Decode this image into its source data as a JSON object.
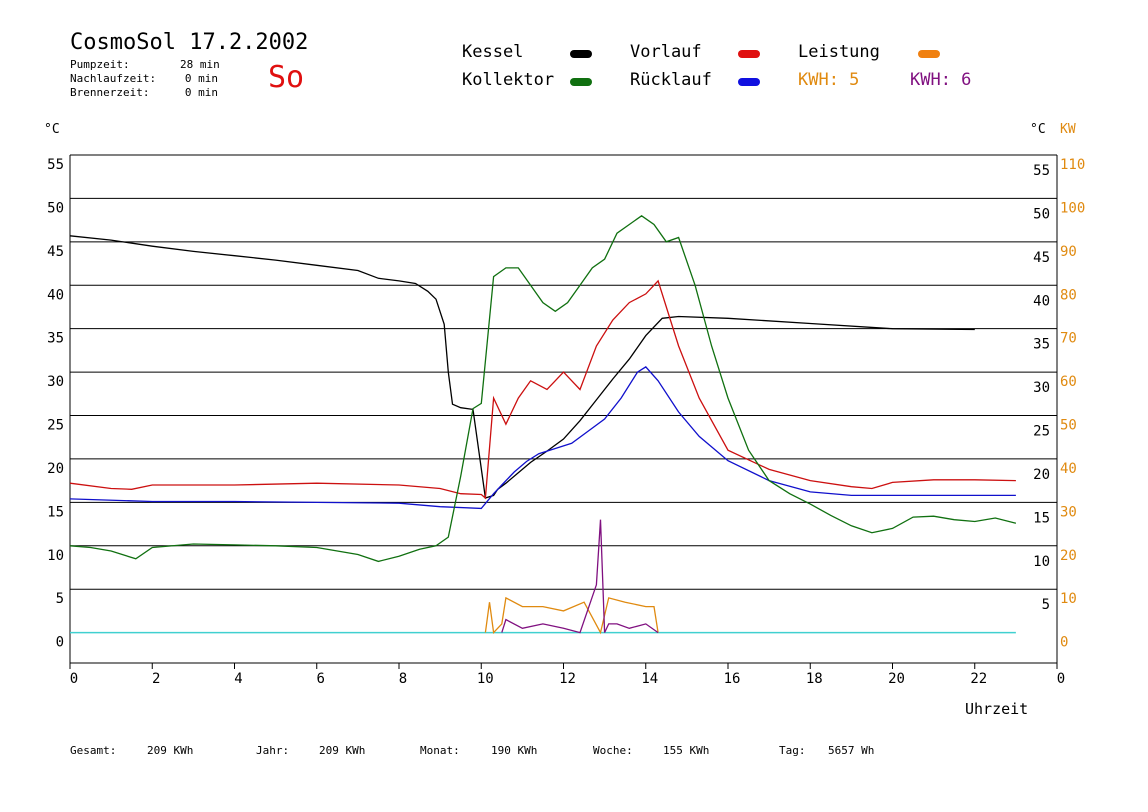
{
  "header": {
    "title": "CosmoSol 17.2.2002",
    "day": "So",
    "info": [
      {
        "label": "Pumpzeit:",
        "value": "28 min"
      },
      {
        "label": "Nachlaufzeit:",
        "value": "0 min"
      },
      {
        "label": "Brennerzeit:",
        "value": "0 min"
      }
    ]
  },
  "legend": {
    "kessel": "Kessel",
    "kollektor": "Kollektor",
    "vorlauf": "Vorlauf",
    "ruecklauf": "Rücklauf",
    "leistung": "Leistung",
    "kwh5": "KWH: 5",
    "kwh6": "KWH: 6"
  },
  "axes": {
    "left_unit": "°C",
    "right_unit": "°C",
    "right_unit2": "KW",
    "xlabel": "Uhrzeit"
  },
  "stats": [
    {
      "label": "Gesamt:",
      "value": "209 KWh"
    },
    {
      "label": "Jahr:",
      "value": "209 KWh"
    },
    {
      "label": "Monat:",
      "value": "190 KWh"
    },
    {
      "label": "Woche:",
      "value": "155 KWh"
    },
    {
      "label": "Tag:",
      "value": "5657 Wh"
    }
  ],
  "chart_data": {
    "type": "line",
    "xlabel": "Uhrzeit",
    "ylabel": "°C",
    "y2label": "KW",
    "xlim": [
      0,
      24
    ],
    "ylim": [
      -3.5,
      55
    ],
    "y2lim": [
      -7,
      110
    ],
    "x_ticks": [
      "0",
      "2",
      "4",
      "6",
      "8",
      "10",
      "12",
      "14",
      "16",
      "18",
      "20",
      "22",
      "0"
    ],
    "y_ticks_left": [
      "0",
      "5",
      "10",
      "15",
      "20",
      "25",
      "30",
      "35",
      "40",
      "45",
      "50",
      "55"
    ],
    "y_ticks_right": [
      "5",
      "10",
      "15",
      "20",
      "25",
      "30",
      "35",
      "40",
      "45",
      "50",
      "55"
    ],
    "y2_ticks": [
      "0",
      "10",
      "20",
      "30",
      "40",
      "50",
      "60",
      "70",
      "80",
      "90",
      "100",
      "110"
    ],
    "grid": true,
    "colors": {
      "kessel": "#000000",
      "vorlauf": "#cc1010",
      "ruecklauf": "#1010cc",
      "kollektor": "#107010",
      "leistung": "#f08010",
      "kwh5": "#e08a10",
      "kwh6": "#801080",
      "baseline": "#40d0d0"
    },
    "series": [
      {
        "name": "Kessel",
        "axis": "left",
        "x": [
          0,
          1,
          2,
          3,
          4,
          5,
          6,
          7,
          7.5,
          8,
          8.4,
          8.7,
          8.9,
          9.1,
          9.2,
          9.3,
          9.5,
          9.8,
          10.1,
          10.3,
          10.4,
          10.6,
          10.9,
          11.2,
          11.6,
          12,
          12.4,
          12.8,
          13.2,
          13.6,
          14,
          14.4,
          14.8,
          16,
          18,
          20,
          22
        ],
        "values": [
          45.7,
          45.2,
          44.5,
          43.9,
          43.4,
          42.9,
          42.3,
          41.7,
          40.8,
          40.5,
          40.2,
          39.3,
          38.4,
          35.5,
          30.0,
          26.3,
          25.9,
          25.7,
          15.5,
          15.8,
          16.5,
          17.2,
          18.4,
          19.6,
          20.9,
          22.3,
          24.4,
          26.8,
          29.2,
          31.5,
          34.2,
          36.2,
          36.4,
          36.2,
          35.6,
          35.0,
          34.9
        ]
      },
      {
        "name": "Vorlauf",
        "axis": "left",
        "x": [
          0,
          1,
          1.5,
          2,
          4,
          6,
          8,
          9,
          9.5,
          10,
          10.1,
          10.3,
          10.6,
          10.9,
          11.2,
          11.6,
          12,
          12.4,
          12.8,
          13.2,
          13.6,
          14,
          14.3,
          14.8,
          15.3,
          16,
          17,
          18,
          19,
          19.5,
          20,
          21,
          22,
          23
        ],
        "values": [
          17.2,
          16.6,
          16.5,
          17.0,
          17.0,
          17.2,
          17.0,
          16.6,
          16.0,
          15.9,
          15.5,
          27,
          24,
          27,
          29,
          28,
          30,
          28,
          33,
          36,
          38,
          39,
          40.5,
          33,
          27,
          21,
          18.8,
          17.5,
          16.8,
          16.6,
          17.3,
          17.6,
          17.6,
          17.5
        ]
      },
      {
        "name": "Rücklauf",
        "axis": "left",
        "x": [
          0,
          2,
          4,
          6,
          8,
          9,
          10,
          10.3,
          10.5,
          10.8,
          11.1,
          11.4,
          11.8,
          12.2,
          12.6,
          13,
          13.4,
          13.8,
          14,
          14.3,
          14.8,
          15.3,
          16,
          17,
          18,
          19,
          20,
          21,
          22,
          23
        ],
        "values": [
          15.4,
          15.1,
          15.1,
          15.0,
          14.9,
          14.5,
          14.3,
          16,
          17,
          18.5,
          19.7,
          20.6,
          21.2,
          21.8,
          23.2,
          24.6,
          27,
          30,
          30.6,
          29,
          25.4,
          22.6,
          19.8,
          17.5,
          16.2,
          15.8,
          15.8,
          15.8,
          15.8,
          15.8
        ]
      },
      {
        "name": "Kollektor",
        "axis": "left",
        "x": [
          0,
          0.5,
          1,
          1.6,
          2,
          3,
          4,
          5,
          6,
          7,
          7.5,
          8,
          8.5,
          8.9,
          9.2,
          9.5,
          9.8,
          10.0,
          10.3,
          10.6,
          10.9,
          11.2,
          11.5,
          11.8,
          12.1,
          12.4,
          12.7,
          13,
          13.3,
          13.6,
          13.9,
          14.2,
          14.5,
          14.8,
          15.2,
          15.6,
          16,
          16.5,
          17,
          17.5,
          18,
          18.5,
          19,
          19.5,
          20,
          20.5,
          21,
          21.5,
          22,
          22.5,
          23
        ],
        "values": [
          10.0,
          9.8,
          9.4,
          8.5,
          9.8,
          10.2,
          10.1,
          10.0,
          9.8,
          9.0,
          8.2,
          8.8,
          9.6,
          10.0,
          11,
          18,
          25.8,
          26.4,
          41,
          42,
          42,
          40,
          38,
          37,
          38,
          40,
          42,
          43,
          46,
          47,
          48,
          47,
          45,
          45.5,
          40,
          33,
          27,
          21,
          17.5,
          16.0,
          14.8,
          13.5,
          12.3,
          11.5,
          12.0,
          13.3,
          13.4,
          13.0,
          12.8,
          13.2,
          12.6
        ]
      },
      {
        "name": "KWH: 5",
        "axis": "right",
        "x": [
          10.1,
          10.2,
          10.3,
          10.5,
          10.6,
          11,
          11.5,
          12,
          12.5,
          12.9,
          13.1,
          13.5,
          14,
          14.2,
          14.3
        ],
        "values": [
          0,
          7,
          0,
          2,
          8,
          6,
          6,
          5,
          7,
          0,
          8,
          7,
          6,
          6,
          0
        ]
      },
      {
        "name": "KWH: 6",
        "axis": "right",
        "x": [
          10.5,
          10.6,
          11,
          11.5,
          12,
          12.4,
          12.8,
          12.9,
          13.0,
          13.1,
          13.3,
          13.6,
          14,
          14.3
        ],
        "values": [
          0,
          3,
          1,
          2,
          1,
          0,
          11,
          26,
          0,
          2,
          2,
          1,
          2,
          0
        ]
      }
    ]
  }
}
